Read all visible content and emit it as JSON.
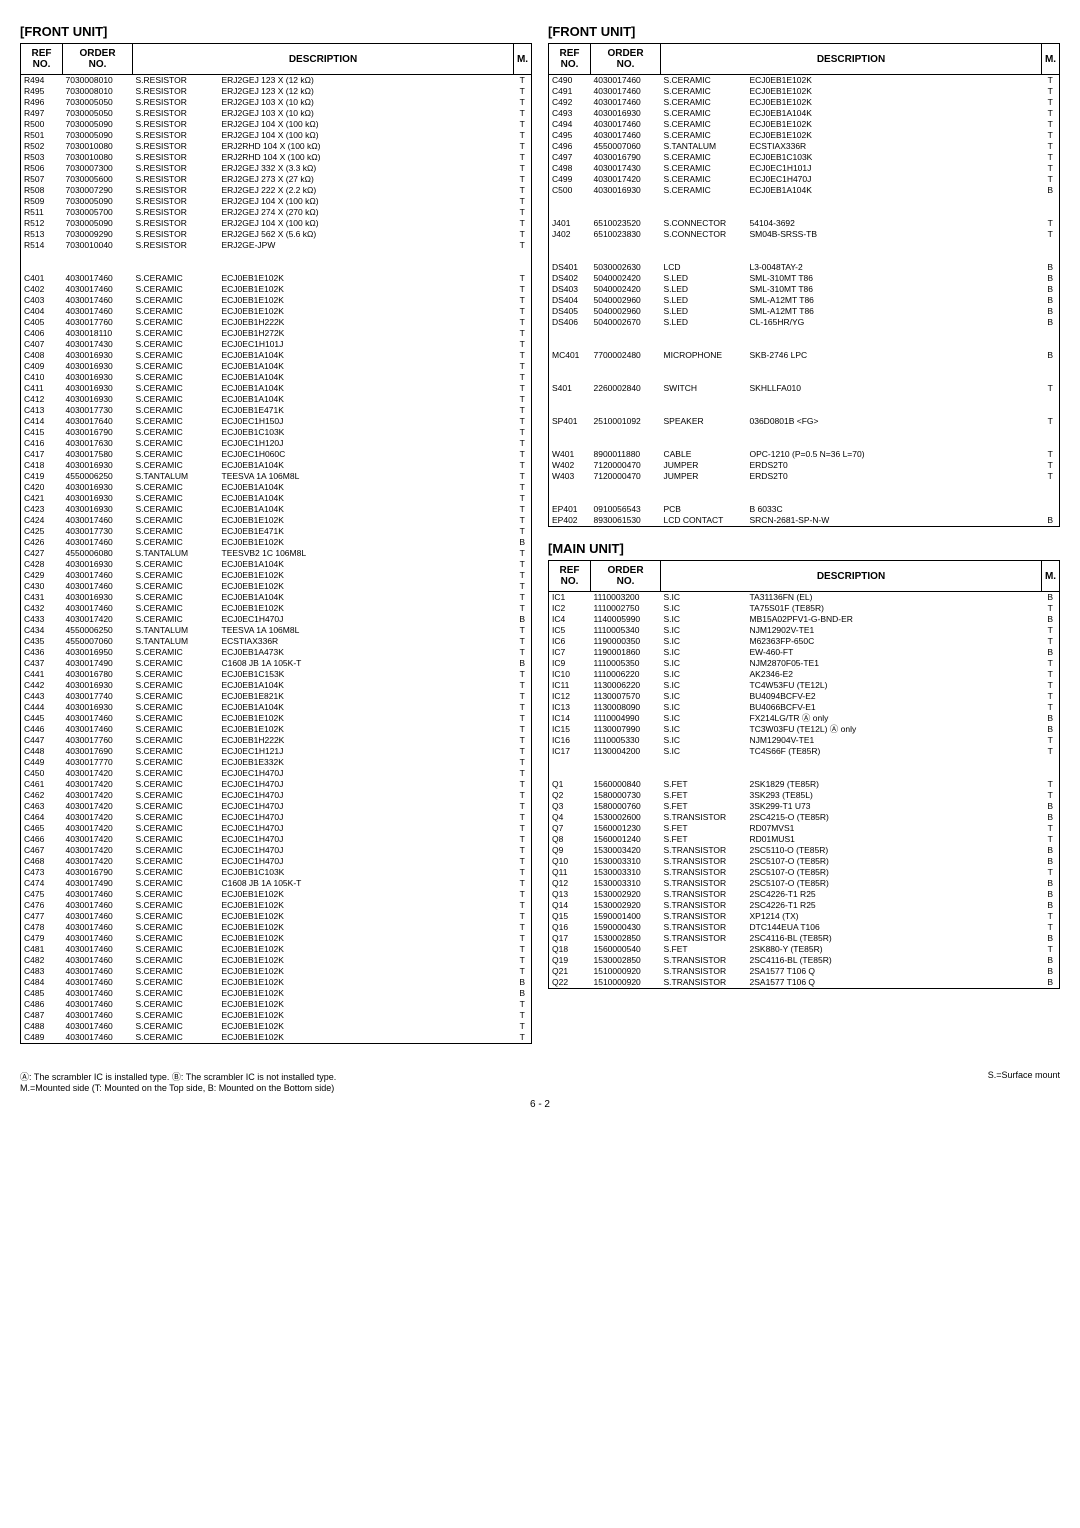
{
  "titles": {
    "front_left": "[FRONT UNIT]",
    "front_right": "[FRONT UNIT]",
    "main": "[MAIN UNIT]"
  },
  "headers": {
    "ref": "REF\nNO.",
    "order": "ORDER\nNO.",
    "desc": "DESCRIPTION",
    "m": "M."
  },
  "left_rows": [
    [
      "R494",
      "7030008010",
      "S.RESISTOR",
      "ERJ2GEJ 123 X (12 kΩ)",
      "T"
    ],
    [
      "R495",
      "7030008010",
      "S.RESISTOR",
      "ERJ2GEJ 123 X (12 kΩ)",
      "T"
    ],
    [
      "R496",
      "7030005050",
      "S.RESISTOR",
      "ERJ2GEJ 103 X (10 kΩ)",
      "T"
    ],
    [
      "R497",
      "7030005050",
      "S.RESISTOR",
      "ERJ2GEJ 103 X (10 kΩ)",
      "T"
    ],
    [
      "R500",
      "7030005090",
      "S.RESISTOR",
      "ERJ2GEJ 104 X (100 kΩ)",
      "T"
    ],
    [
      "R501",
      "7030005090",
      "S.RESISTOR",
      "ERJ2GEJ 104 X (100 kΩ)",
      "T"
    ],
    [
      "R502",
      "7030010080",
      "S.RESISTOR",
      "ERJ2RHD 104 X (100 kΩ)",
      "T"
    ],
    [
      "R503",
      "7030010080",
      "S.RESISTOR",
      "ERJ2RHD 104 X (100 kΩ)",
      "T"
    ],
    [
      "R506",
      "7030007300",
      "S.RESISTOR",
      "ERJ2GEJ 332 X (3.3 kΩ)",
      "T"
    ],
    [
      "R507",
      "7030005600",
      "S.RESISTOR",
      "ERJ2GEJ 273 X (27 kΩ)",
      "T"
    ],
    [
      "R508",
      "7030007290",
      "S.RESISTOR",
      "ERJ2GEJ 222 X (2.2 kΩ)",
      "T"
    ],
    [
      "R509",
      "7030005090",
      "S.RESISTOR",
      "ERJ2GEJ 104 X (100 kΩ)",
      "T"
    ],
    [
      "R511",
      "7030005700",
      "S.RESISTOR",
      "ERJ2GEJ 274 X (270 kΩ)",
      "T"
    ],
    [
      "R512",
      "7030005090",
      "S.RESISTOR",
      "ERJ2GEJ 104 X (100 kΩ)",
      "T"
    ],
    [
      "R513",
      "7030009290",
      "S.RESISTOR",
      "ERJ2GEJ 562 X (5.6 kΩ)",
      "T"
    ],
    [
      "R514",
      "7030010040",
      "S.RESISTOR",
      "ERJ2GE-JPW",
      "T"
    ],
    [],
    [],
    [
      "C401",
      "4030017460",
      "S.CERAMIC",
      "ECJ0EB1E102K",
      "T"
    ],
    [
      "C402",
      "4030017460",
      "S.CERAMIC",
      "ECJ0EB1E102K",
      "T"
    ],
    [
      "C403",
      "4030017460",
      "S.CERAMIC",
      "ECJ0EB1E102K",
      "T"
    ],
    [
      "C404",
      "4030017460",
      "S.CERAMIC",
      "ECJ0EB1E102K",
      "T"
    ],
    [
      "C405",
      "4030017760",
      "S.CERAMIC",
      "ECJ0EB1H222K",
      "T"
    ],
    [
      "C406",
      "4030018110",
      "S.CERAMIC",
      "ECJ0EB1H272K",
      "T"
    ],
    [
      "C407",
      "4030017430",
      "S.CERAMIC",
      "ECJ0EC1H101J",
      "T"
    ],
    [
      "C408",
      "4030016930",
      "S.CERAMIC",
      "ECJ0EB1A104K",
      "T"
    ],
    [
      "C409",
      "4030016930",
      "S.CERAMIC",
      "ECJ0EB1A104K",
      "T"
    ],
    [
      "C410",
      "4030016930",
      "S.CERAMIC",
      "ECJ0EB1A104K",
      "T"
    ],
    [
      "C411",
      "4030016930",
      "S.CERAMIC",
      "ECJ0EB1A104K",
      "T"
    ],
    [
      "C412",
      "4030016930",
      "S.CERAMIC",
      "ECJ0EB1A104K",
      "T"
    ],
    [
      "C413",
      "4030017730",
      "S.CERAMIC",
      "ECJ0EB1E471K",
      "T"
    ],
    [
      "C414",
      "4030017640",
      "S.CERAMIC",
      "ECJ0EC1H150J",
      "T"
    ],
    [
      "C415",
      "4030016790",
      "S.CERAMIC",
      "ECJ0EB1C103K",
      "T"
    ],
    [
      "C416",
      "4030017630",
      "S.CERAMIC",
      "ECJ0EC1H120J",
      "T"
    ],
    [
      "C417",
      "4030017580",
      "S.CERAMIC",
      "ECJ0EC1H060C",
      "T"
    ],
    [
      "C418",
      "4030016930",
      "S.CERAMIC",
      "ECJ0EB1A104K",
      "T"
    ],
    [
      "C419",
      "4550006250",
      "S.TANTALUM",
      "TEESVA 1A 106M8L",
      "T"
    ],
    [
      "C420",
      "4030016930",
      "S.CERAMIC",
      "ECJ0EB1A104K",
      "T"
    ],
    [
      "C421",
      "4030016930",
      "S.CERAMIC",
      "ECJ0EB1A104K",
      "T"
    ],
    [
      "C423",
      "4030016930",
      "S.CERAMIC",
      "ECJ0EB1A104K",
      "T"
    ],
    [
      "C424",
      "4030017460",
      "S.CERAMIC",
      "ECJ0EB1E102K",
      "T"
    ],
    [
      "C425",
      "4030017730",
      "S.CERAMIC",
      "ECJ0EB1E471K",
      "T"
    ],
    [
      "C426",
      "4030017460",
      "S.CERAMIC",
      "ECJ0EB1E102K",
      "B"
    ],
    [
      "C427",
      "4550006080",
      "S.TANTALUM",
      "TEESVB2 1C 106M8L",
      "T"
    ],
    [
      "C428",
      "4030016930",
      "S.CERAMIC",
      "ECJ0EB1A104K",
      "T"
    ],
    [
      "C429",
      "4030017460",
      "S.CERAMIC",
      "ECJ0EB1E102K",
      "T"
    ],
    [
      "C430",
      "4030017460",
      "S.CERAMIC",
      "ECJ0EB1E102K",
      "T"
    ],
    [
      "C431",
      "4030016930",
      "S.CERAMIC",
      "ECJ0EB1A104K",
      "T"
    ],
    [
      "C432",
      "4030017460",
      "S.CERAMIC",
      "ECJ0EB1E102K",
      "T"
    ],
    [
      "C433",
      "4030017420",
      "S.CERAMIC",
      "ECJ0EC1H470J",
      "B"
    ],
    [
      "C434",
      "4550006250",
      "S.TANTALUM",
      "TEESVA 1A 106M8L",
      "T"
    ],
    [
      "C435",
      "4550007060",
      "S.TANTALUM",
      "ECSTIAX336R",
      "T"
    ],
    [
      "C436",
      "4030016950",
      "S.CERAMIC",
      "ECJ0EB1A473K",
      "T"
    ],
    [
      "C437",
      "4030017490",
      "S.CERAMIC",
      "C1608 JB 1A 105K-T",
      "B"
    ],
    [
      "C441",
      "4030016780",
      "S.CERAMIC",
      "ECJ0EB1C153K",
      "T"
    ],
    [
      "C442",
      "4030016930",
      "S.CERAMIC",
      "ECJ0EB1A104K",
      "T"
    ],
    [
      "C443",
      "4030017740",
      "S.CERAMIC",
      "ECJ0EB1E821K",
      "T"
    ],
    [
      "C444",
      "4030016930",
      "S.CERAMIC",
      "ECJ0EB1A104K",
      "T"
    ],
    [
      "C445",
      "4030017460",
      "S.CERAMIC",
      "ECJ0EB1E102K",
      "T"
    ],
    [
      "C446",
      "4030017460",
      "S.CERAMIC",
      "ECJ0EB1E102K",
      "T"
    ],
    [
      "C447",
      "4030017760",
      "S.CERAMIC",
      "ECJ0EB1H222K",
      "T"
    ],
    [
      "C448",
      "4030017690",
      "S.CERAMIC",
      "ECJ0EC1H121J",
      "T"
    ],
    [
      "C449",
      "4030017770",
      "S.CERAMIC",
      "ECJ0EB1E332K",
      "T"
    ],
    [
      "C450",
      "4030017420",
      "S.CERAMIC",
      "ECJ0EC1H470J",
      "T"
    ],
    [
      "C461",
      "4030017420",
      "S.CERAMIC",
      "ECJ0EC1H470J",
      "T"
    ],
    [
      "C462",
      "4030017420",
      "S.CERAMIC",
      "ECJ0EC1H470J",
      "T"
    ],
    [
      "C463",
      "4030017420",
      "S.CERAMIC",
      "ECJ0EC1H470J",
      "T"
    ],
    [
      "C464",
      "4030017420",
      "S.CERAMIC",
      "ECJ0EC1H470J",
      "T"
    ],
    [
      "C465",
      "4030017420",
      "S.CERAMIC",
      "ECJ0EC1H470J",
      "T"
    ],
    [
      "C466",
      "4030017420",
      "S.CERAMIC",
      "ECJ0EC1H470J",
      "T"
    ],
    [
      "C467",
      "4030017420",
      "S.CERAMIC",
      "ECJ0EC1H470J",
      "T"
    ],
    [
      "C468",
      "4030017420",
      "S.CERAMIC",
      "ECJ0EC1H470J",
      "T"
    ],
    [
      "C473",
      "4030016790",
      "S.CERAMIC",
      "ECJ0EB1C103K",
      "T"
    ],
    [
      "C474",
      "4030017490",
      "S.CERAMIC",
      "C1608 JB 1A 105K-T",
      "T"
    ],
    [
      "C475",
      "4030017460",
      "S.CERAMIC",
      "ECJ0EB1E102K",
      "T"
    ],
    [
      "C476",
      "4030017460",
      "S.CERAMIC",
      "ECJ0EB1E102K",
      "T"
    ],
    [
      "C477",
      "4030017460",
      "S.CERAMIC",
      "ECJ0EB1E102K",
      "T"
    ],
    [
      "C478",
      "4030017460",
      "S.CERAMIC",
      "ECJ0EB1E102K",
      "T"
    ],
    [
      "C479",
      "4030017460",
      "S.CERAMIC",
      "ECJ0EB1E102K",
      "T"
    ],
    [
      "C481",
      "4030017460",
      "S.CERAMIC",
      "ECJ0EB1E102K",
      "T"
    ],
    [
      "C482",
      "4030017460",
      "S.CERAMIC",
      "ECJ0EB1E102K",
      "T"
    ],
    [
      "C483",
      "4030017460",
      "S.CERAMIC",
      "ECJ0EB1E102K",
      "T"
    ],
    [
      "C484",
      "4030017460",
      "S.CERAMIC",
      "ECJ0EB1E102K",
      "B"
    ],
    [
      "C485",
      "4030017460",
      "S.CERAMIC",
      "ECJ0EB1E102K",
      "B"
    ],
    [
      "C486",
      "4030017460",
      "S.CERAMIC",
      "ECJ0EB1E102K",
      "T"
    ],
    [
      "C487",
      "4030017460",
      "S.CERAMIC",
      "ECJ0EB1E102K",
      "T"
    ],
    [
      "C488",
      "4030017460",
      "S.CERAMIC",
      "ECJ0EB1E102K",
      "T"
    ],
    [
      "C489",
      "4030017460",
      "S.CERAMIC",
      "ECJ0EB1E102K",
      "T"
    ]
  ],
  "right_front_rows": [
    [
      "C490",
      "4030017460",
      "S.CERAMIC",
      "ECJ0EB1E102K",
      "T"
    ],
    [
      "C491",
      "4030017460",
      "S.CERAMIC",
      "ECJ0EB1E102K",
      "T"
    ],
    [
      "C492",
      "4030017460",
      "S.CERAMIC",
      "ECJ0EB1E102K",
      "T"
    ],
    [
      "C493",
      "4030016930",
      "S.CERAMIC",
      "ECJ0EB1A104K",
      "T"
    ],
    [
      "C494",
      "4030017460",
      "S.CERAMIC",
      "ECJ0EB1E102K",
      "T"
    ],
    [
      "C495",
      "4030017460",
      "S.CERAMIC",
      "ECJ0EB1E102K",
      "T"
    ],
    [
      "C496",
      "4550007060",
      "S.TANTALUM",
      "ECSTIAX336R",
      "T"
    ],
    [
      "C497",
      "4030016790",
      "S.CERAMIC",
      "ECJ0EB1C103K",
      "T"
    ],
    [
      "C498",
      "4030017430",
      "S.CERAMIC",
      "ECJ0EC1H101J",
      "T"
    ],
    [
      "C499",
      "4030017420",
      "S.CERAMIC",
      "ECJ0EC1H470J",
      "T"
    ],
    [
      "C500",
      "4030016930",
      "S.CERAMIC",
      "ECJ0EB1A104K",
      "B"
    ],
    [],
    [],
    [
      "J401",
      "6510023520",
      "S.CONNECTOR",
      "54104-3692",
      "T"
    ],
    [
      "J402",
      "6510023830",
      "S.CONNECTOR",
      "SM04B-SRSS-TB",
      "T"
    ],
    [],
    [],
    [
      "DS401",
      "5030002630",
      "LCD",
      "L3-0048TAY-2",
      "B"
    ],
    [
      "DS402",
      "5040002420",
      "S.LED",
      "SML-310MT T86",
      "B"
    ],
    [
      "DS403",
      "5040002420",
      "S.LED",
      "SML-310MT T86",
      "B"
    ],
    [
      "DS404",
      "5040002960",
      "S.LED",
      "SML-A12MT T86",
      "B"
    ],
    [
      "DS405",
      "5040002960",
      "S.LED",
      "SML-A12MT T86",
      "B"
    ],
    [
      "DS406",
      "5040002670",
      "S.LED",
      "CL-165HR/YG",
      "B"
    ],
    [],
    [],
    [
      "MC401",
      "7700002480",
      "MICROPHONE",
      "SKB-2746 LPC",
      "B"
    ],
    [],
    [],
    [
      "S401",
      "2260002840",
      "SWITCH",
      "SKHLLFA010",
      "T"
    ],
    [],
    [],
    [
      "SP401",
      "2510001092",
      "SPEAKER",
      "036D0801B <FG>",
      "T"
    ],
    [],
    [],
    [
      "W401",
      "8900011880",
      "CABLE",
      "OPC-1210 (P=0.5 N=36 L=70)",
      "T"
    ],
    [
      "W402",
      "7120000470",
      "JUMPER",
      "ERDS2T0",
      "T"
    ],
    [
      "W403",
      "7120000470",
      "JUMPER",
      "ERDS2T0",
      "T"
    ],
    [],
    [],
    [
      "EP401",
      "0910056543",
      "PCB",
      "B 6033C",
      ""
    ],
    [
      "EP402",
      "8930061530",
      "LCD CONTACT",
      "SRCN-2681-SP-N-W",
      "B"
    ]
  ],
  "main_rows": [
    [
      "IC1",
      "1110003200",
      "S.IC",
      "TA31136FN (EL)",
      "B"
    ],
    [
      "IC2",
      "1110002750",
      "S.IC",
      "TA75S01F (TE85R)",
      "T"
    ],
    [
      "IC4",
      "1140005990",
      "S.IC",
      "MB15A02PFV1-G-BND-ER",
      "B"
    ],
    [
      "IC5",
      "1110005340",
      "S.IC",
      "NJM12902V-TE1",
      "T"
    ],
    [
      "IC6",
      "1190000350",
      "S.IC",
      "M62363FP-650C",
      "T"
    ],
    [
      "IC7",
      "1190001860",
      "S.IC",
      "EW-460-FT",
      "B"
    ],
    [
      "IC9",
      "1110005350",
      "S.IC",
      "NJM2870F05-TE1",
      "T"
    ],
    [
      "IC10",
      "1110006220",
      "S.IC",
      "AK2346-E2",
      "T"
    ],
    [
      "IC11",
      "1130006220",
      "S.IC",
      "TC4W53FU (TE12L)",
      "T"
    ],
    [
      "IC12",
      "1130007570",
      "S.IC",
      "BU4094BCFV-E2",
      "T"
    ],
    [
      "IC13",
      "1130008090",
      "S.IC",
      "BU4066BCFV-E1",
      "T"
    ],
    [
      "IC14",
      "1110004990",
      "S.IC",
      "FX214LG/TR               Ⓐ only",
      "B"
    ],
    [
      "IC15",
      "1130007990",
      "S.IC",
      "TC3W03FU (TE12L)     Ⓐ only",
      "B"
    ],
    [
      "IC16",
      "1110005330",
      "S.IC",
      "NJM12904V-TE1",
      "T"
    ],
    [
      "IC17",
      "1130004200",
      "S.IC",
      "TC4S66F (TE85R)",
      "T"
    ],
    [],
    [],
    [
      "Q1",
      "1560000840",
      "S.FET",
      "2SK1829 (TE85R)",
      "T"
    ],
    [
      "Q2",
      "1580000730",
      "S.FET",
      "3SK293 (TE85L)",
      "T"
    ],
    [
      "Q3",
      "1580000760",
      "S.FET",
      "3SK299-T1 U73",
      "B"
    ],
    [
      "Q4",
      "1530002600",
      "S.TRANSISTOR",
      "2SC4215-O (TE85R)",
      "B"
    ],
    [
      "Q7",
      "1560001230",
      "S.FET",
      "RD07MVS1",
      "T"
    ],
    [
      "Q8",
      "1560001240",
      "S.FET",
      "RD01MUS1",
      "T"
    ],
    [
      "Q9",
      "1530003420",
      "S.TRANSISTOR",
      "2SC5110-O (TE85R)",
      "B"
    ],
    [
      "Q10",
      "1530003310",
      "S.TRANSISTOR",
      "2SC5107-O (TE85R)",
      "B"
    ],
    [
      "Q11",
      "1530003310",
      "S.TRANSISTOR",
      "2SC5107-O (TE85R)",
      "T"
    ],
    [
      "Q12",
      "1530003310",
      "S.TRANSISTOR",
      "2SC5107-O (TE85R)",
      "B"
    ],
    [
      "Q13",
      "1530002920",
      "S.TRANSISTOR",
      "2SC4226-T1 R25",
      "B"
    ],
    [
      "Q14",
      "1530002920",
      "S.TRANSISTOR",
      "2SC4226-T1 R25",
      "B"
    ],
    [
      "Q15",
      "1590001400",
      "S.TRANSISTOR",
      "XP1214 (TX)",
      "T"
    ],
    [
      "Q16",
      "1590000430",
      "S.TRANSISTOR",
      "DTC144EUA T106",
      "T"
    ],
    [
      "Q17",
      "1530002850",
      "S.TRANSISTOR",
      "2SC4116-BL (TE85R)",
      "B"
    ],
    [
      "Q18",
      "1560000540",
      "S.FET",
      "2SK880-Y (TE85R)",
      "T"
    ],
    [
      "Q19",
      "1530002850",
      "S.TRANSISTOR",
      "2SC4116-BL (TE85R)",
      "B"
    ],
    [
      "Q21",
      "1510000920",
      "S.TRANSISTOR",
      "2SA1577 T106 Q",
      "B"
    ],
    [
      "Q22",
      "1510000920",
      "S.TRANSISTOR",
      "2SA1577 T106 Q",
      "B"
    ]
  ],
  "footnotes": {
    "left1": "Ⓐ: The scrambler IC is installed type. Ⓑ: The scrambler IC is not installed type.",
    "left2": "M.=Mounted side (T: Mounted on the Top side, B: Mounted on the Bottom side)",
    "right": "S.=Surface mount"
  },
  "page_number": "6 - 2"
}
